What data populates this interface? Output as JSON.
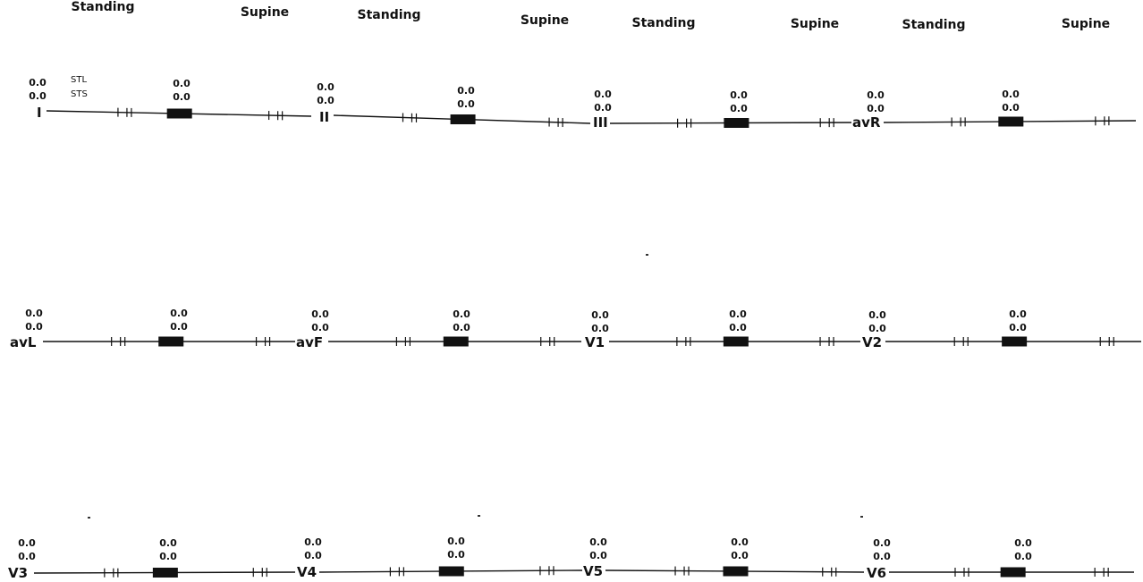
{
  "column_headers": [
    {
      "standing": "Standing",
      "supine": "Supine"
    },
    {
      "standing": "Standing",
      "supine": "Supine"
    },
    {
      "standing": "Standing",
      "supine": "Supine"
    },
    {
      "standing": "Standing",
      "supine": "Supine"
    }
  ],
  "legend": {
    "stl": "STL",
    "sts": "STS"
  },
  "leads": [
    {
      "name": "I",
      "standing_stl": "0.0",
      "standing_sts": "0.0",
      "supine_stl": "0.0",
      "supine_sts": "0.0"
    },
    {
      "name": "II",
      "standing_stl": "0.0",
      "standing_sts": "0.0",
      "supine_stl": "0.0",
      "supine_sts": "0.0"
    },
    {
      "name": "III",
      "standing_stl": "0.0",
      "standing_sts": "0.0",
      "supine_stl": "0.0",
      "supine_sts": "0.0"
    },
    {
      "name": "avR",
      "standing_stl": "0.0",
      "standing_sts": "0.0",
      "supine_stl": "0.0",
      "supine_sts": "0.0"
    },
    {
      "name": "avL",
      "standing_stl": "0.0",
      "standing_sts": "0.0",
      "supine_stl": "0.0",
      "supine_sts": "0.0"
    },
    {
      "name": "avF",
      "standing_stl": "0.0",
      "standing_sts": "0.0",
      "supine_stl": "0.0",
      "supine_sts": "0.0"
    },
    {
      "name": "V1",
      "standing_stl": "0.0",
      "standing_sts": "0.0",
      "supine_stl": "0.0",
      "supine_sts": "0.0"
    },
    {
      "name": "V2",
      "standing_stl": "0.0",
      "standing_sts": "0.0",
      "supine_stl": "0.0",
      "supine_sts": "0.0"
    },
    {
      "name": "V3",
      "standing_stl": "0.0",
      "standing_sts": "0.0",
      "supine_stl": "0.0",
      "supine_sts": "0.0"
    },
    {
      "name": "V4",
      "standing_stl": "0.0",
      "standing_sts": "0.0",
      "supine_stl": "0.0",
      "supine_sts": "0.0"
    },
    {
      "name": "V5",
      "standing_stl": "0.0",
      "standing_sts": "0.0",
      "supine_stl": "0.0",
      "supine_sts": "0.0"
    },
    {
      "name": "V6",
      "standing_stl": "0.0",
      "standing_sts": "0.0",
      "supine_stl": "0.0",
      "supine_sts": "0.0"
    }
  ],
  "colors": {
    "trace": "#111111",
    "background": "#ffffff"
  }
}
